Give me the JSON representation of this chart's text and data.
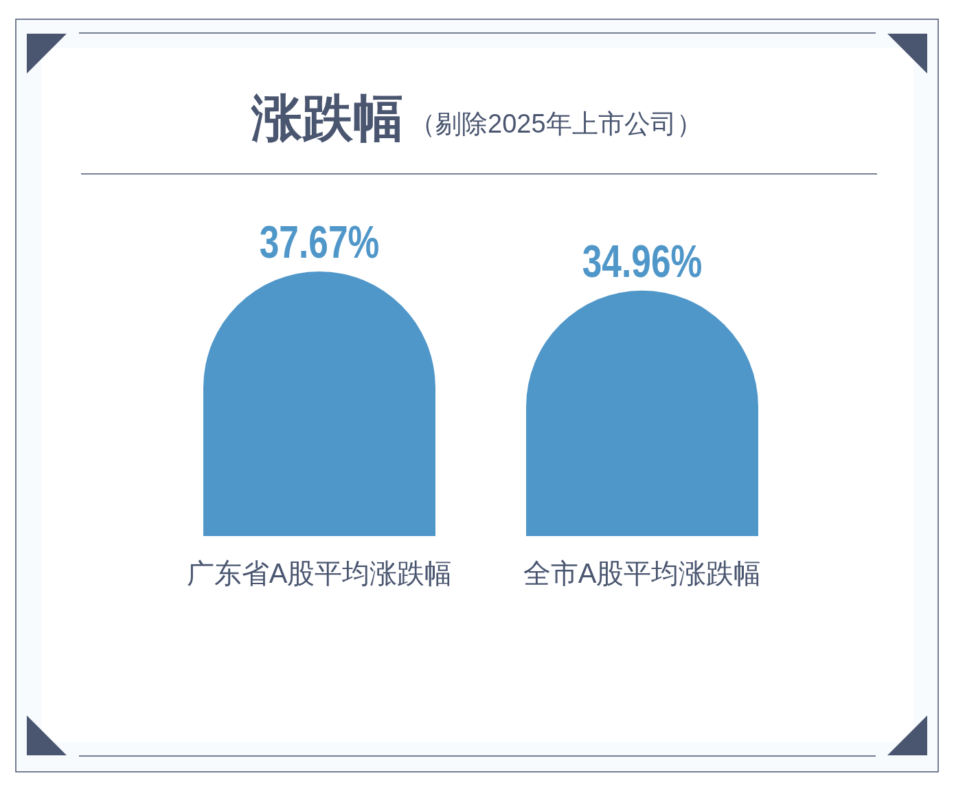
{
  "chart_data": {
    "type": "bar",
    "title": "涨跌幅",
    "subtitle": "（剔除2025年上市公司）",
    "categories": [
      "广东省A股平均涨跌幅",
      "全市A股平均涨跌幅"
    ],
    "values": [
      37.67,
      34.96
    ],
    "value_labels": [
      "37.67%",
      "34.96%"
    ],
    "color": "#5097c9"
  }
}
